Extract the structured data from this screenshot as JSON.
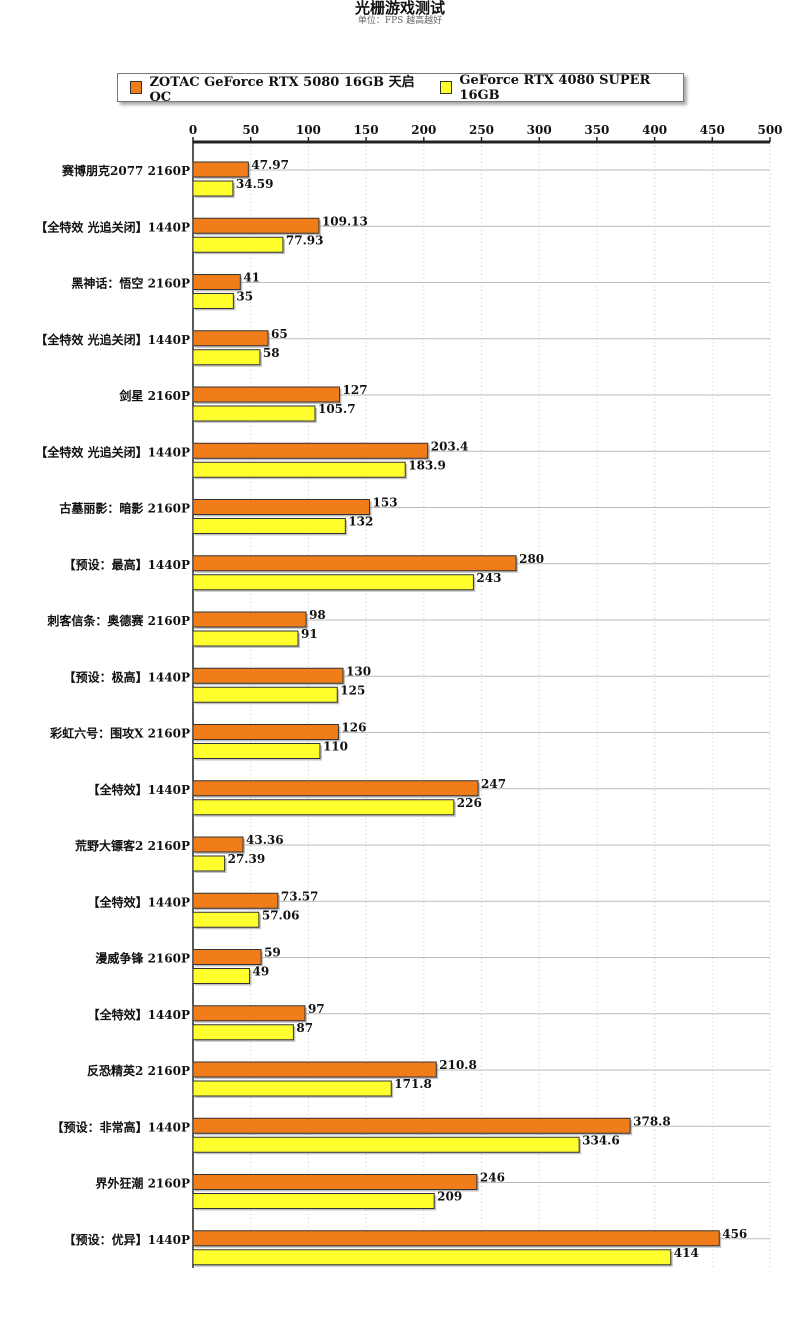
{
  "title": "光栅游戏测试",
  "subtitle": "单位：FPS   越高越好",
  "legend": [
    {
      "name": "ZOTAC GeForce RTX 5080 16GB 天启 OC",
      "color": "#f07d1a"
    },
    {
      "name": "GeForce RTX 4080 SUPER 16GB",
      "color": "#ffff2e"
    }
  ],
  "chart_data": {
    "type": "bar",
    "orientation": "horizontal",
    "title": "光栅游戏测试",
    "subtitle": "单位：FPS   越高越好",
    "xlim": [
      0,
      500
    ],
    "xticks": [
      0,
      50,
      100,
      150,
      200,
      250,
      300,
      350,
      400,
      450,
      500
    ],
    "grid": true,
    "legend_position": "top",
    "categories": [
      "赛博朋克2077 2160P",
      "【全特效 光追关闭】1440P",
      "黑神话：悟空 2160P",
      "【全特效 光追关闭】1440P",
      "剑星 2160P",
      "【全特效 光追关闭】1440P",
      "古墓丽影：暗影 2160P",
      "【预设：最高】1440P",
      "刺客信条：奥德赛 2160P",
      "【预设：极高】1440P",
      "彩虹六号：围攻X 2160P",
      "【全特效】1440P",
      "荒野大镖客2 2160P",
      "【全特效】1440P",
      "漫威争锋 2160P",
      "【全特效】1440P",
      "反恐精英2 2160P",
      "【预设：非常高】1440P",
      "界外狂潮 2160P",
      "【预设：优异】1440P"
    ],
    "series": [
      {
        "name": "ZOTAC GeForce RTX 5080 16GB 天启 OC",
        "color": "#f07d1a",
        "values": [
          47.97,
          109.13,
          41,
          65,
          127,
          203.4,
          153,
          280,
          98,
          130,
          126,
          247,
          43.36,
          73.57,
          59,
          97,
          210.8,
          378.8,
          246,
          456
        ]
      },
      {
        "name": "GeForce RTX 4080 SUPER 16GB",
        "color": "#ffff2e",
        "values": [
          34.59,
          77.93,
          35,
          58,
          105.7,
          183.9,
          132,
          243,
          91,
          125,
          110,
          226,
          27.39,
          57.06,
          49,
          87,
          171.8,
          334.6,
          209,
          414
        ]
      }
    ]
  }
}
